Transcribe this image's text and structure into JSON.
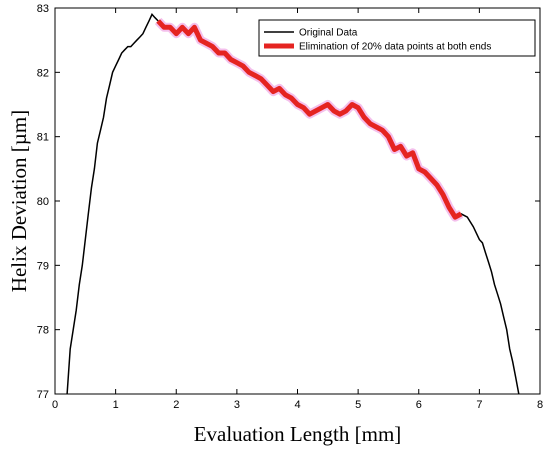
{
  "chart_data": {
    "type": "line",
    "xlabel": "Evaluation Length [mm]",
    "ylabel": "Helix Deviation [µm]",
    "xlim": [
      0,
      8
    ],
    "ylim": [
      77,
      83
    ],
    "xticks": [
      "0",
      "1",
      "2",
      "3",
      "4",
      "5",
      "6",
      "7",
      "8"
    ],
    "yticks": [
      "77",
      "78",
      "79",
      "80",
      "81",
      "82",
      "83"
    ],
    "grid": false,
    "legend_position": "top-right",
    "colors": {
      "original": "#000000",
      "trimmed": "#e52421",
      "trimmed_halo": "#f4c0ec"
    },
    "series": [
      {
        "name": "Original Data",
        "x": [
          0.2,
          0.25,
          0.3,
          0.35,
          0.4,
          0.45,
          0.5,
          0.55,
          0.6,
          0.65,
          0.7,
          0.75,
          0.8,
          0.85,
          0.9,
          0.95,
          1.0,
          1.05,
          1.1,
          1.15,
          1.2,
          1.25,
          1.3,
          1.35,
          1.4,
          1.45,
          1.5,
          1.55,
          1.6,
          1.65,
          1.7,
          1.8,
          1.9,
          2.0,
          2.1,
          2.2,
          2.3,
          2.4,
          2.5,
          2.6,
          2.7,
          2.8,
          2.9,
          3.0,
          3.1,
          3.2,
          3.3,
          3.4,
          3.5,
          3.6,
          3.7,
          3.8,
          3.9,
          4.0,
          4.1,
          4.2,
          4.3,
          4.4,
          4.5,
          4.6,
          4.7,
          4.8,
          4.9,
          5.0,
          5.1,
          5.2,
          5.3,
          5.4,
          5.5,
          5.6,
          5.7,
          5.8,
          5.9,
          6.0,
          6.1,
          6.2,
          6.3,
          6.4,
          6.5,
          6.6,
          6.7,
          6.8,
          6.9,
          7.0,
          7.05,
          7.1,
          7.15,
          7.2,
          7.25,
          7.3,
          7.35,
          7.4,
          7.45,
          7.5,
          7.55,
          7.6,
          7.65
        ],
        "y": [
          77.0,
          77.7,
          78.0,
          78.3,
          78.7,
          79.0,
          79.4,
          79.8,
          80.2,
          80.5,
          80.9,
          81.1,
          81.3,
          81.6,
          81.8,
          82.0,
          82.1,
          82.2,
          82.3,
          82.35,
          82.4,
          82.4,
          82.45,
          82.5,
          82.55,
          82.6,
          82.7,
          82.8,
          82.9,
          82.85,
          82.8,
          82.7,
          82.7,
          82.6,
          82.7,
          82.6,
          82.7,
          82.5,
          82.45,
          82.4,
          82.3,
          82.3,
          82.2,
          82.15,
          82.1,
          82.0,
          81.95,
          81.9,
          81.8,
          81.7,
          81.75,
          81.65,
          81.6,
          81.5,
          81.45,
          81.35,
          81.4,
          81.45,
          81.5,
          81.4,
          81.35,
          81.4,
          81.5,
          81.45,
          81.3,
          81.2,
          81.15,
          81.1,
          81.0,
          80.8,
          80.85,
          80.7,
          80.75,
          80.5,
          80.45,
          80.35,
          80.25,
          80.1,
          79.9,
          79.75,
          79.8,
          79.75,
          79.6,
          79.4,
          79.35,
          79.2,
          79.05,
          78.9,
          78.7,
          78.55,
          78.4,
          78.2,
          78.0,
          77.7,
          77.5,
          77.25,
          77.0
        ]
      },
      {
        "name": "Elimination of 20% data points at both ends",
        "x": [
          1.7,
          1.8,
          1.9,
          2.0,
          2.1,
          2.2,
          2.3,
          2.4,
          2.5,
          2.6,
          2.7,
          2.8,
          2.9,
          3.0,
          3.1,
          3.2,
          3.3,
          3.4,
          3.5,
          3.6,
          3.7,
          3.8,
          3.9,
          4.0,
          4.1,
          4.2,
          4.3,
          4.4,
          4.5,
          4.6,
          4.7,
          4.8,
          4.9,
          5.0,
          5.1,
          5.2,
          5.3,
          5.4,
          5.5,
          5.6,
          5.7,
          5.8,
          5.9,
          6.0,
          6.1,
          6.2,
          6.3,
          6.4,
          6.5,
          6.6,
          6.7
        ],
        "y": [
          82.8,
          82.7,
          82.7,
          82.6,
          82.7,
          82.6,
          82.7,
          82.5,
          82.45,
          82.4,
          82.3,
          82.3,
          82.2,
          82.15,
          82.1,
          82.0,
          81.95,
          81.9,
          81.8,
          81.7,
          81.75,
          81.65,
          81.6,
          81.5,
          81.45,
          81.35,
          81.4,
          81.45,
          81.5,
          81.4,
          81.35,
          81.4,
          81.5,
          81.45,
          81.3,
          81.2,
          81.15,
          81.1,
          81.0,
          80.8,
          80.85,
          80.7,
          80.75,
          80.5,
          80.45,
          80.35,
          80.25,
          80.1,
          79.9,
          79.75,
          79.8
        ]
      }
    ]
  }
}
